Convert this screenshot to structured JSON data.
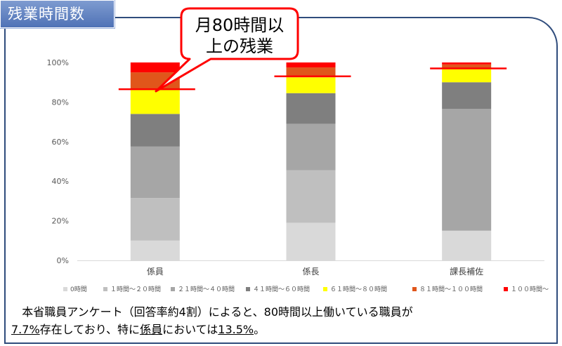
{
  "header": {
    "title": "残業時間数"
  },
  "callout": {
    "line1": "月80時間以",
    "line2": "上の残業",
    "color": "#ff0000"
  },
  "chart_data": {
    "type": "bar",
    "stacked": true,
    "percent": true,
    "categories": [
      "係員",
      "係長",
      "課長補佐"
    ],
    "ylim": [
      0,
      100
    ],
    "yticks": [
      "0%",
      "20%",
      "40%",
      "60%",
      "80%",
      "100%"
    ],
    "grid": false,
    "legend_position": "bottom",
    "series": [
      {
        "name": "0時間",
        "color": "#d9d9d9",
        "values": [
          10,
          19,
          15
        ]
      },
      {
        "name": "１時間～２０時間",
        "color": "#bfbfbf",
        "values": [
          21.5,
          26.5,
          0
        ]
      },
      {
        "name": "２１時間～４０時間",
        "color": "#a6a6a6",
        "values": [
          26,
          23.5,
          61.5
        ]
      },
      {
        "name": "４１時間～６０時間",
        "color": "#7f7f7f",
        "values": [
          16.5,
          15.5,
          13.5
        ]
      },
      {
        "name": "６１時間～８０時間",
        "color": "#ffff00",
        "values": [
          12.5,
          8,
          7
        ]
      },
      {
        "name": "８１時間～１００時間",
        "color": "#e0561b",
        "values": [
          8.5,
          5,
          2
        ]
      },
      {
        "name": "１００時間～",
        "color": "#ff0000",
        "values": [
          5,
          2.5,
          1
        ]
      }
    ],
    "threshold_marks": [
      86.5,
      93,
      97
    ],
    "threshold_color": "#ff0000"
  },
  "caption": {
    "line1": "本省職員アンケート（回答率約4割）によると、80時間以上働いている職員が",
    "pct_total": "7.7%",
    "mid": "存在しており、特に",
    "group": "係員",
    "end1": "においては",
    "pct_group": "13.5%",
    "end2": "。"
  }
}
